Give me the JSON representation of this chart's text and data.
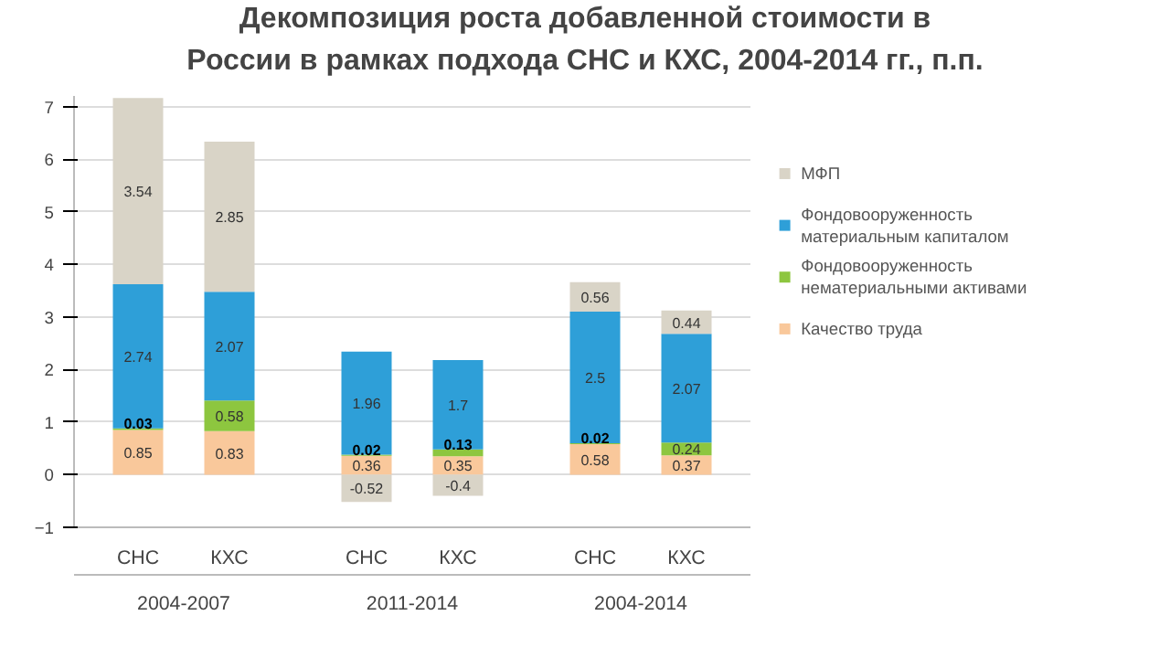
{
  "chart_data": {
    "type": "bar",
    "stacked": true,
    "title": "Декомпозиция роста добавленной стоимости в\nРоссии в рамках подхода СНС и КХС, 2004-2014 гг., п.п.",
    "categories": [
      "СНС",
      "КХС",
      "СНС",
      "КХС",
      "СНС",
      "КХС"
    ],
    "annotations": [
      "2004-2007",
      "2011-2014",
      "2004-2014"
    ],
    "series": [
      {
        "name": "Качество труда",
        "color": "#f9c89b",
        "values": [
          0.85,
          0.83,
          0.36,
          0.35,
          0.58,
          0.37
        ]
      },
      {
        "name": "Фондовооруженность нематериальными активами",
        "color": "#8dc63f",
        "values": [
          0.03,
          0.58,
          0.02,
          0.13,
          0.02,
          0.24
        ]
      },
      {
        "name": "Фондовооруженность материальным капиталом",
        "color": "#2e9fd8",
        "values": [
          2.74,
          2.07,
          1.96,
          1.7,
          2.5,
          2.07
        ]
      },
      {
        "name": "МФП",
        "color": "#d9d4c7",
        "values": [
          3.54,
          2.85,
          -0.52,
          -0.4,
          0.56,
          0.44
        ]
      }
    ],
    "data_labels": true,
    "ylim": [
      -1,
      7.2
    ],
    "yticks": [
      -1,
      0,
      1,
      2,
      3,
      4,
      5,
      6,
      7
    ],
    "grid": "y",
    "legend": "right"
  }
}
